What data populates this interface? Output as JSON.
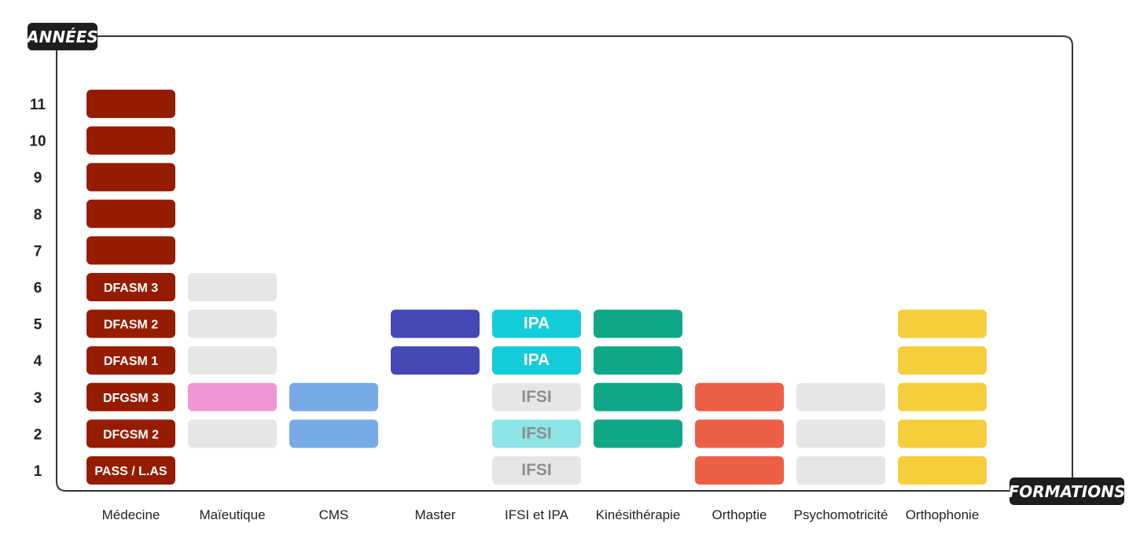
{
  "chart_data": {
    "type": "table",
    "ylabel": "ANNÉES",
    "xlabel": "FORMATIONS",
    "years": [
      1,
      2,
      3,
      4,
      5,
      6,
      7,
      8,
      9,
      10,
      11
    ],
    "categories": [
      "Médecine",
      "Maïeutique",
      "CMS",
      "Master",
      "IFSI et IPA",
      "Kinésithérapie",
      "Orthoptie",
      "Psychomotricité",
      "Orthophonie"
    ],
    "grid": false,
    "series": [
      {
        "category": "Médecine",
        "cells": [
          {
            "year": 1,
            "label": "PASS / L.AS",
            "color": "#961c00"
          },
          {
            "year": 2,
            "label": "DFGSM 2",
            "color": "#961c00"
          },
          {
            "year": 3,
            "label": "DFGSM 3",
            "color": "#961c00"
          },
          {
            "year": 4,
            "label": "DFASM 1",
            "color": "#961c00"
          },
          {
            "year": 5,
            "label": "DFASM 2",
            "color": "#961c00"
          },
          {
            "year": 6,
            "label": "DFASM 3",
            "color": "#961c00"
          },
          {
            "year": 7,
            "label": "",
            "color": "#961c00"
          },
          {
            "year": 8,
            "label": "",
            "color": "#961c00"
          },
          {
            "year": 9,
            "label": "",
            "color": "#961c00"
          },
          {
            "year": 10,
            "label": "",
            "color": "#961c00"
          },
          {
            "year": 11,
            "label": "",
            "color": "#961c00"
          }
        ]
      },
      {
        "category": "Maïeutique",
        "cells": [
          {
            "year": 2,
            "label": "",
            "color": "#e6e6e6"
          },
          {
            "year": 3,
            "label": "",
            "color": "#f196d4"
          },
          {
            "year": 4,
            "label": "",
            "color": "#e6e6e6"
          },
          {
            "year": 5,
            "label": "",
            "color": "#e6e6e6"
          },
          {
            "year": 6,
            "label": "",
            "color": "#e6e6e6"
          }
        ]
      },
      {
        "category": "CMS",
        "cells": [
          {
            "year": 2,
            "label": "",
            "color": "#76abe8"
          },
          {
            "year": 3,
            "label": "",
            "color": "#76abe8"
          }
        ]
      },
      {
        "category": "Master",
        "cells": [
          {
            "year": 4,
            "label": "",
            "color": "#4449b5"
          },
          {
            "year": 5,
            "label": "",
            "color": "#4449b5"
          }
        ]
      },
      {
        "category": "IFSI et IPA",
        "cells": [
          {
            "year": 1,
            "label": "IFSI",
            "color": "#e6e6e6",
            "text_color": "#8e8e8e"
          },
          {
            "year": 2,
            "label": "IFSI",
            "color": "#8de5e8",
            "text_color": "#8e8e8e"
          },
          {
            "year": 3,
            "label": "IFSI",
            "color": "#e6e6e6",
            "text_color": "#8e8e8e"
          },
          {
            "year": 4,
            "label": "IPA",
            "color": "#12cdd9",
            "text_color": "#ffffff"
          },
          {
            "year": 5,
            "label": "IPA",
            "color": "#12cdd9",
            "text_color": "#ffffff"
          }
        ]
      },
      {
        "category": "Kinésithérapie",
        "cells": [
          {
            "year": 2,
            "label": "",
            "color": "#0fa887"
          },
          {
            "year": 3,
            "label": "",
            "color": "#0fa887"
          },
          {
            "year": 4,
            "label": "",
            "color": "#0fa887"
          },
          {
            "year": 5,
            "label": "",
            "color": "#0fa887"
          }
        ]
      },
      {
        "category": "Orthoptie",
        "cells": [
          {
            "year": 1,
            "label": "",
            "color": "#ec5f46"
          },
          {
            "year": 2,
            "label": "",
            "color": "#ec5f46"
          },
          {
            "year": 3,
            "label": "",
            "color": "#ec5f46"
          }
        ]
      },
      {
        "category": "Psychomotricité",
        "cells": [
          {
            "year": 1,
            "label": "",
            "color": "#e6e6e6"
          },
          {
            "year": 2,
            "label": "",
            "color": "#e6e6e6"
          },
          {
            "year": 3,
            "label": "",
            "color": "#e6e6e6"
          }
        ]
      },
      {
        "category": "Orthophonie",
        "cells": [
          {
            "year": 1,
            "label": "",
            "color": "#f6ce3c"
          },
          {
            "year": 2,
            "label": "",
            "color": "#f6ce3c"
          },
          {
            "year": 3,
            "label": "",
            "color": "#f6ce3c"
          },
          {
            "year": 4,
            "label": "",
            "color": "#f6ce3c"
          },
          {
            "year": 5,
            "label": "",
            "color": "#f6ce3c"
          }
        ]
      }
    ]
  }
}
